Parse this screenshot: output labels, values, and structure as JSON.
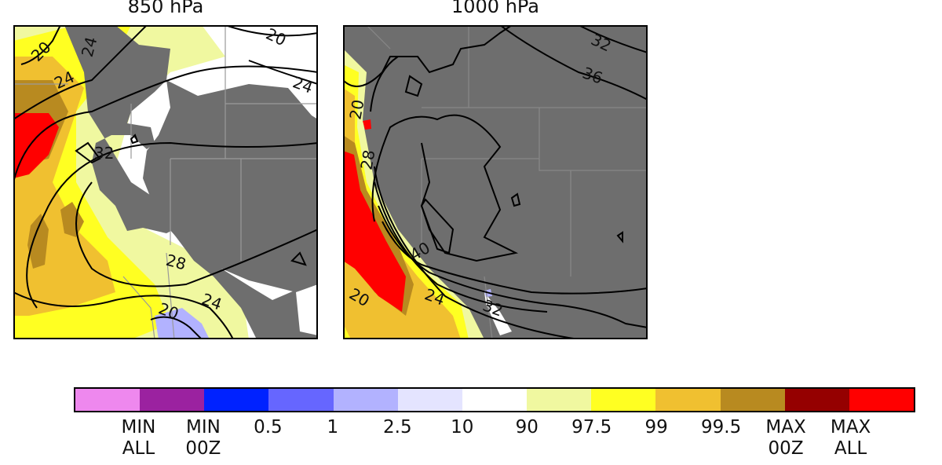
{
  "panels": [
    {
      "title": "850 hPa",
      "contour_labels": [
        "20",
        "24",
        "24",
        "20",
        "24",
        "32",
        "28",
        "24",
        "20"
      ]
    },
    {
      "title": "1000 hPa",
      "contour_labels": [
        "32",
        "36",
        "20",
        "28",
        "40",
        "20",
        "24",
        "32"
      ]
    }
  ],
  "colorbar": {
    "colors": [
      "#ee88ee",
      "#9b22a0",
      "#0022ff",
      "#6666ff",
      "#b2b2ff",
      "#e4e4ff",
      "#ffffff",
      "#f0f8a0",
      "#ffff22",
      "#f0c030",
      "#b88a20",
      "#950000",
      "#ff0000"
    ],
    "ticks": [
      {
        "l1": "MIN",
        "l2": "ALL"
      },
      {
        "l1": "MIN",
        "l2": "00Z"
      },
      {
        "l1": "0.5",
        "l2": ""
      },
      {
        "l1": "1",
        "l2": ""
      },
      {
        "l1": "2.5",
        "l2": ""
      },
      {
        "l1": "10",
        "l2": ""
      },
      {
        "l1": "90",
        "l2": ""
      },
      {
        "l1": "97.5",
        "l2": ""
      },
      {
        "l1": "99",
        "l2": ""
      },
      {
        "l1": "99.5",
        "l2": ""
      },
      {
        "l1": "MAX",
        "l2": "00Z"
      },
      {
        "l1": "MAX",
        "l2": "ALL"
      }
    ]
  },
  "colors": {
    "terrain_mask": "#6e6e6e",
    "contour": "#000000",
    "border": "#000000"
  }
}
